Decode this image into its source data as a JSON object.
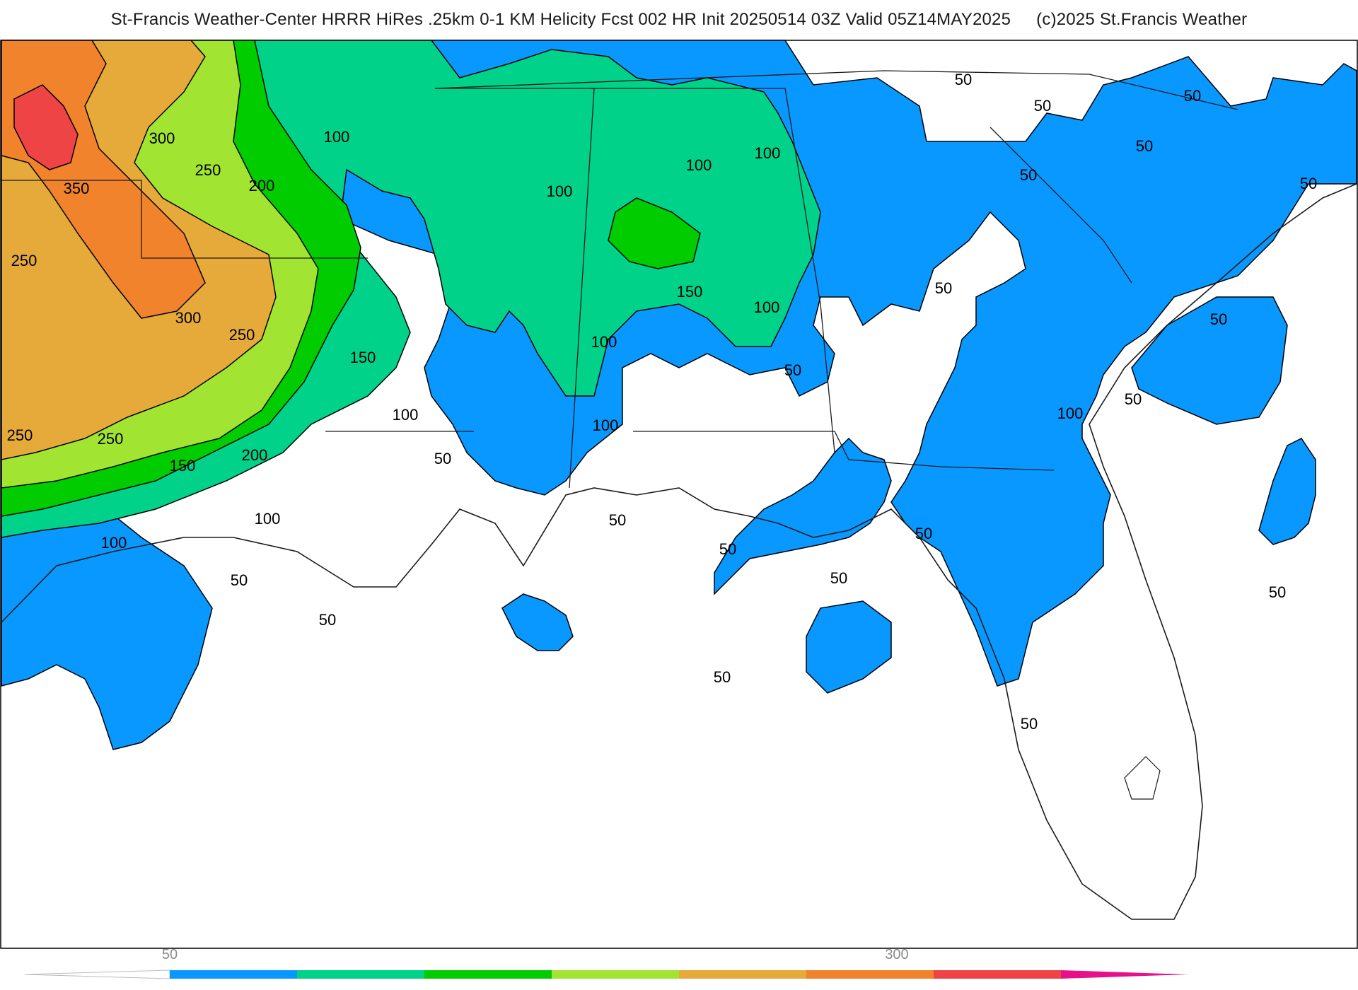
{
  "title": {
    "main": "St-Francis Weather-Center HRRR HiRes .25km 0-1 KM Helicity Fcst 002 HR Init 20250514 03Z  Valid 05Z14MAY2025",
    "copyright": "(c)2025 St.Francis Weather"
  },
  "colors": {
    "c50": "#0898ff",
    "c100": "#00d28a",
    "c150": "#00cc00",
    "c200": "#a2e432",
    "c250": "#e6aa3a",
    "c300": "#f0832c",
    "c350": "#ee4446",
    "c400": "#e8108a",
    "land": "#ffffff",
    "border": "#1a1a1a",
    "county": "#c8c8c8"
  },
  "contour_labels": [
    {
      "text": "300"
    },
    {
      "text": "350"
    },
    {
      "text": "250"
    },
    {
      "text": "250"
    },
    {
      "text": "200"
    },
    {
      "text": "300"
    },
    {
      "text": "250"
    },
    {
      "text": "150"
    },
    {
      "text": "250"
    },
    {
      "text": "250"
    },
    {
      "text": "150"
    },
    {
      "text": "200"
    },
    {
      "text": "100"
    },
    {
      "text": "100"
    },
    {
      "text": "100"
    },
    {
      "text": "100"
    },
    {
      "text": "100"
    },
    {
      "text": "50"
    },
    {
      "text": "50"
    },
    {
      "text": "50"
    },
    {
      "text": "50"
    },
    {
      "text": "100"
    },
    {
      "text": "100"
    },
    {
      "text": "100"
    },
    {
      "text": "150"
    },
    {
      "text": "100"
    },
    {
      "text": "100"
    },
    {
      "text": "50"
    },
    {
      "text": "50"
    },
    {
      "text": "50"
    },
    {
      "text": "50"
    },
    {
      "text": "50"
    },
    {
      "text": "50"
    },
    {
      "text": "50"
    },
    {
      "text": "50"
    },
    {
      "text": "50"
    },
    {
      "text": "50"
    },
    {
      "text": "100"
    },
    {
      "text": "50"
    },
    {
      "text": "50"
    },
    {
      "text": "50"
    },
    {
      "text": "50"
    },
    {
      "text": "50"
    },
    {
      "text": "50"
    }
  ],
  "colorbar": {
    "tick_min": "50",
    "tick_mid": "300",
    "bins": [
      {
        "color": "#0898ff"
      },
      {
        "color": "#00d28a"
      },
      {
        "color": "#00cc00"
      },
      {
        "color": "#a2e432"
      },
      {
        "color": "#e6aa3a"
      },
      {
        "color": "#f0832c"
      },
      {
        "color": "#ee4446"
      },
      {
        "color": "#e8108a"
      }
    ]
  }
}
